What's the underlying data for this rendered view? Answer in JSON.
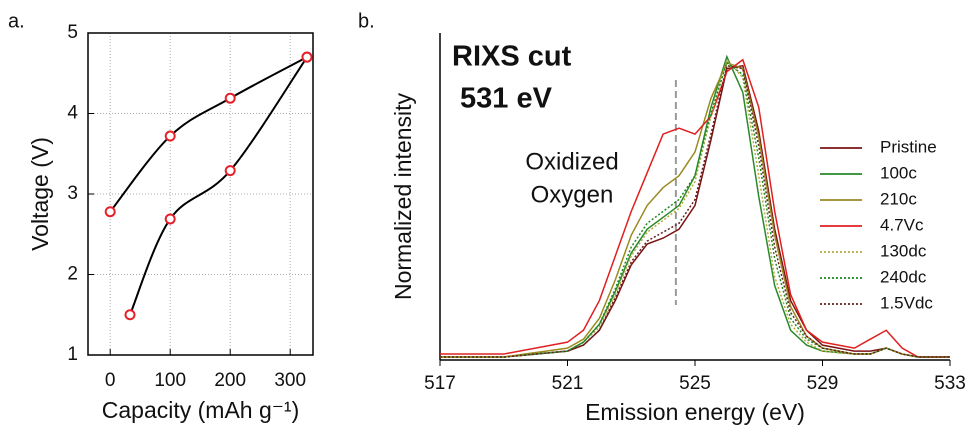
{
  "chart_data": [
    {
      "type": "line",
      "panel": "a.",
      "xlabel": "Capacity (mAh g⁻¹)",
      "ylabel": "Voltage (V)",
      "xlim": [
        -37,
        338
      ],
      "ylim": [
        1,
        5
      ],
      "xticks": [
        0,
        100,
        200,
        300
      ],
      "yticks": [
        1,
        2,
        3,
        4,
        5
      ],
      "grid": true,
      "marker_color": "#e8202a",
      "series": [
        {
          "color": "#000000",
          "x": [
            0,
            100,
            200,
            328
          ],
          "values": [
            2.78,
            3.72,
            4.19,
            4.7
          ]
        },
        {
          "color": "#000000",
          "x": [
            328,
            200,
            100,
            33
          ],
          "values": [
            4.7,
            3.29,
            2.69,
            1.5
          ]
        }
      ]
    },
    {
      "type": "line",
      "panel": "b.",
      "xlabel": "Emission energy (eV)",
      "ylabel": "Normalized intensity",
      "annotations": [
        "RIXS cut",
        "531 eV",
        "Oxidized",
        "Oxygen"
      ],
      "vline": 524.4,
      "xlim": [
        517,
        533
      ],
      "ylim": [
        0,
        1.1
      ],
      "xticks": [
        517,
        521,
        525,
        529,
        533
      ],
      "grid": false,
      "x": [
        517,
        519,
        521,
        521.5,
        522,
        522.5,
        523,
        523.5,
        524,
        524.5,
        525,
        525.5,
        526,
        526.5,
        527,
        527.5,
        528,
        528.5,
        529,
        530,
        530.5,
        531,
        531.5,
        532,
        533
      ],
      "series": [
        {
          "name": "Pristine",
          "color": "#7a1414",
          "style": "solid",
          "values": [
            0.01,
            0.01,
            0.03,
            0.05,
            0.1,
            0.2,
            0.32,
            0.39,
            0.41,
            0.44,
            0.52,
            0.74,
            0.98,
            0.99,
            0.77,
            0.44,
            0.2,
            0.1,
            0.05,
            0.03,
            0.03,
            0.04,
            0.02,
            0.01,
            0.01
          ]
        },
        {
          "name": "100c",
          "color": "#2a8a2a",
          "style": "solid",
          "values": [
            0.01,
            0.01,
            0.03,
            0.06,
            0.12,
            0.23,
            0.36,
            0.44,
            0.48,
            0.52,
            0.62,
            0.85,
            1.02,
            0.9,
            0.55,
            0.25,
            0.1,
            0.05,
            0.03,
            0.02,
            0.02,
            0.04,
            0.02,
            0.01,
            0.01
          ]
        },
        {
          "name": "210c",
          "color": "#9a8a20",
          "style": "solid",
          "values": [
            0.01,
            0.01,
            0.04,
            0.07,
            0.14,
            0.27,
            0.42,
            0.52,
            0.58,
            0.62,
            0.7,
            0.88,
            1.0,
            0.98,
            0.75,
            0.42,
            0.18,
            0.08,
            0.04,
            0.02,
            0.02,
            0.04,
            0.02,
            0.01,
            0.01
          ]
        },
        {
          "name": "4.7Vc",
          "color": "#e02020",
          "style": "solid",
          "values": [
            0.02,
            0.02,
            0.06,
            0.1,
            0.2,
            0.35,
            0.5,
            0.63,
            0.76,
            0.78,
            0.76,
            0.82,
            0.97,
            1.01,
            0.85,
            0.5,
            0.22,
            0.1,
            0.06,
            0.04,
            0.07,
            0.1,
            0.04,
            0.01,
            0.01
          ]
        },
        {
          "name": "130dc",
          "color": "#b8a840",
          "style": "dotted",
          "values": [
            0.01,
            0.01,
            0.03,
            0.06,
            0.11,
            0.22,
            0.35,
            0.43,
            0.47,
            0.51,
            0.6,
            0.82,
            1.01,
            0.95,
            0.62,
            0.28,
            0.12,
            0.06,
            0.03,
            0.02,
            0.02,
            0.04,
            0.02,
            0.01,
            0.01
          ]
        },
        {
          "name": "240dc",
          "color": "#1f8a1f",
          "style": "dotted",
          "values": [
            0.01,
            0.01,
            0.03,
            0.06,
            0.12,
            0.24,
            0.38,
            0.46,
            0.5,
            0.54,
            0.62,
            0.83,
            1.0,
            0.96,
            0.68,
            0.34,
            0.14,
            0.07,
            0.04,
            0.02,
            0.02,
            0.04,
            0.02,
            0.01,
            0.01
          ]
        },
        {
          "name": "1.5Vdc",
          "color": "#6a2020",
          "style": "dotted",
          "values": [
            0.01,
            0.01,
            0.03,
            0.05,
            0.1,
            0.21,
            0.33,
            0.4,
            0.43,
            0.46,
            0.54,
            0.76,
            0.99,
            0.98,
            0.72,
            0.38,
            0.16,
            0.08,
            0.04,
            0.02,
            0.02,
            0.04,
            0.02,
            0.01,
            0.01
          ]
        }
      ]
    }
  ]
}
